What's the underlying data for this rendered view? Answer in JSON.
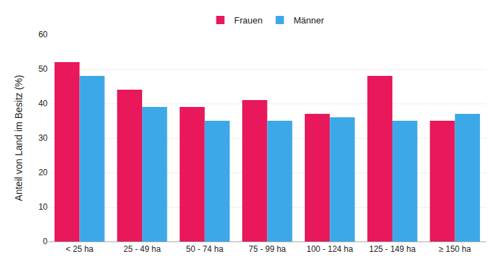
{
  "chart_data": {
    "type": "bar",
    "categories": [
      "< 25 ha",
      "25 - 49 ha",
      "50 - 74 ha",
      "75 - 99 ha",
      "100 - 124 ha",
      "125 - 149 ha",
      "≥ 150 ha"
    ],
    "series": [
      {
        "name": "Frauen",
        "color": "#e8185a",
        "values": [
          52,
          44,
          39,
          41,
          37,
          48,
          35
        ]
      },
      {
        "name": "Männer",
        "color": "#3da8e8",
        "values": [
          48,
          39,
          35,
          35,
          36,
          35,
          37
        ]
      }
    ],
    "ylabel": "Anteil von Land im Besitz (%)",
    "ylim": [
      0,
      60
    ],
    "yticks": [
      0,
      10,
      20,
      30,
      40,
      50,
      60
    ],
    "grid": true,
    "legend": "top"
  }
}
